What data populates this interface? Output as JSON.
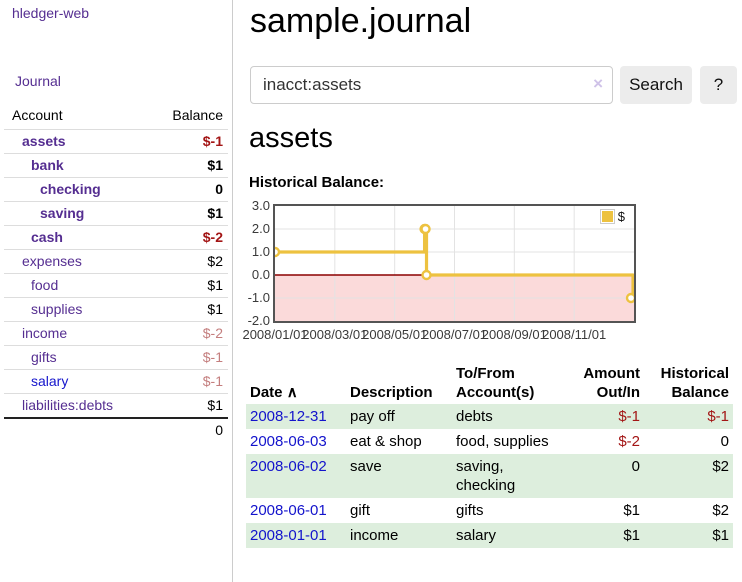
{
  "colors": {
    "link_purple": "#552e91",
    "link_blue": "#1515cc",
    "negative_strong": "#a31515",
    "negative_faded": "#c47e7e",
    "row_stripe_green": "#ddeedd",
    "series_gold": "#EDC240",
    "negative_region_pink": "#fbdada",
    "zero_line_red": "#8b0000",
    "chart_border": "#545454"
  },
  "sidebar": {
    "brand": "hledger-web",
    "journal_link": "Journal",
    "accounts_table": {
      "headers": [
        "Account",
        "Balance"
      ],
      "rows": [
        {
          "account": "assets",
          "indent": 0,
          "balance": "$-1",
          "bold": true,
          "balance_style": "negative",
          "link_style": "purple"
        },
        {
          "account": "bank",
          "indent": 1,
          "balance": "$1",
          "bold": true,
          "balance_style": "normal",
          "link_style": "purple"
        },
        {
          "account": "checking",
          "indent": 2,
          "balance": "0",
          "bold": true,
          "balance_style": "normal",
          "link_style": "purple"
        },
        {
          "account": "saving",
          "indent": 2,
          "balance": "$1",
          "bold": true,
          "balance_style": "normal",
          "link_style": "purple"
        },
        {
          "account": "cash",
          "indent": 1,
          "balance": "$-2",
          "bold": true,
          "balance_style": "negative",
          "link_style": "purple"
        },
        {
          "account": "expenses",
          "indent": 0,
          "balance": "$2",
          "bold": false,
          "balance_style": "normal",
          "link_style": "purple"
        },
        {
          "account": "food",
          "indent": 1,
          "balance": "$1",
          "bold": false,
          "balance_style": "normal",
          "link_style": "purple"
        },
        {
          "account": "supplies",
          "indent": 1,
          "balance": "$1",
          "bold": false,
          "balance_style": "normal",
          "link_style": "purple"
        },
        {
          "account": "income",
          "indent": 0,
          "balance": "$-2",
          "bold": false,
          "balance_style": "negative-faded",
          "link_style": "purple"
        },
        {
          "account": "gifts",
          "indent": 1,
          "balance": "$-1",
          "bold": false,
          "balance_style": "negative-faded",
          "link_style": "purple"
        },
        {
          "account": "salary",
          "indent": 1,
          "balance": "$-1",
          "bold": false,
          "balance_style": "negative-faded",
          "link_style": "blue"
        },
        {
          "account": "liabilities:debts",
          "indent": 0,
          "balance": "$1",
          "bold": false,
          "balance_style": "normal",
          "link_style": "purple"
        }
      ],
      "total": "0"
    }
  },
  "main": {
    "title": "sample.journal",
    "search": {
      "value": "inacct:assets",
      "clear_icon": "×",
      "search_button": "Search",
      "help_button": "?"
    },
    "account_heading": "assets",
    "chart_title": "Historical Balance:"
  },
  "chart_data": {
    "type": "line",
    "step": true,
    "title": "Historical Balance:",
    "legend": [
      {
        "label": "$",
        "color": "#EDC240"
      }
    ],
    "legend_position": "top-right",
    "series": [
      {
        "name": "$",
        "color": "#EDC240",
        "points": [
          {
            "date": "2008-01-01",
            "value": 1
          },
          {
            "date": "2008-06-01",
            "value": 2
          },
          {
            "date": "2008-06-02",
            "value": 2
          },
          {
            "date": "2008-06-03",
            "value": 0
          },
          {
            "date": "2008-12-31",
            "value": -1
          }
        ]
      }
    ],
    "ylim": [
      -2,
      3
    ],
    "yticks": [
      {
        "v": 3,
        "label": "3.0"
      },
      {
        "v": 2,
        "label": "2.0"
      },
      {
        "v": 1,
        "label": "1.0"
      },
      {
        "v": 0,
        "label": "0.0"
      },
      {
        "v": -1,
        "label": "-1.0"
      },
      {
        "v": -2,
        "label": "-2.0"
      }
    ],
    "xticks": [
      {
        "month": 0,
        "label": "2008/01/01"
      },
      {
        "month": 2,
        "label": "2008/03/01"
      },
      {
        "month": 4,
        "label": "2008/05/01"
      },
      {
        "month": 6,
        "label": "2008/07/01"
      },
      {
        "month": 8,
        "label": "2008/09/01"
      },
      {
        "month": 10,
        "label": "2008/11/01"
      }
    ],
    "grid": true,
    "negative_region_color": "#fbdada",
    "zero_line_color": "#8b0000"
  },
  "transactions": {
    "headers": {
      "date": "Date",
      "sort_indicator": "∧",
      "description": "Description",
      "accounts": "To/From Account(s)",
      "amount": "Amount Out/In",
      "balance": "Historical Balance"
    },
    "rows": [
      {
        "date": "2008-12-31",
        "description": "pay off",
        "accounts": "debts",
        "amount": "$-1",
        "balance": "$-1"
      },
      {
        "date": "2008-06-03",
        "description": "eat & shop",
        "accounts": "food, supplies",
        "amount": "$-2",
        "balance": "0"
      },
      {
        "date": "2008-06-02",
        "description": "save",
        "accounts": "saving, checking",
        "amount": "0",
        "balance": "$2"
      },
      {
        "date": "2008-06-01",
        "description": "gift",
        "accounts": "gifts",
        "amount": "$1",
        "balance": "$2"
      },
      {
        "date": "2008-01-01",
        "description": "income",
        "accounts": "salary",
        "amount": "$1",
        "balance": "$1"
      }
    ]
  }
}
